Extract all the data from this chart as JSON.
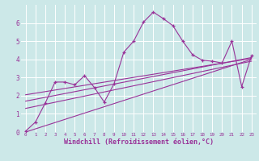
{
  "bg_color": "#cce8e8",
  "line_color": "#993399",
  "grid_color": "#ffffff",
  "xlim": [
    -0.5,
    23.5
  ],
  "ylim": [
    0,
    7
  ],
  "xticks": [
    0,
    1,
    2,
    3,
    4,
    5,
    6,
    7,
    8,
    9,
    10,
    11,
    12,
    13,
    14,
    15,
    16,
    17,
    18,
    19,
    20,
    21,
    22,
    23
  ],
  "yticks": [
    0,
    1,
    2,
    3,
    4,
    5,
    6
  ],
  "line1_x": [
    0,
    1,
    2,
    3,
    4,
    5,
    6,
    7,
    8,
    9,
    10,
    11,
    12,
    13,
    14,
    15,
    16,
    17,
    18,
    19,
    20,
    21,
    22,
    23
  ],
  "line1_y": [
    0.05,
    0.55,
    1.6,
    2.75,
    2.75,
    2.6,
    3.1,
    2.45,
    1.65,
    2.65,
    4.4,
    5.0,
    6.05,
    6.6,
    6.25,
    5.85,
    5.0,
    4.25,
    3.95,
    3.9,
    3.8,
    5.0,
    2.5,
    4.2
  ],
  "line2_x": [
    0,
    23
  ],
  "line2_y": [
    0.0,
    4.0
  ],
  "line3_x": [
    0,
    23
  ],
  "line3_y": [
    1.3,
    3.9
  ],
  "line4_x": [
    0,
    23
  ],
  "line4_y": [
    1.7,
    4.1
  ],
  "line5_x": [
    0,
    23
  ],
  "line5_y": [
    2.05,
    4.05
  ],
  "xlabel": "Windchill (Refroidissement éolien,°C)",
  "xlabel_fontsize": 6.0,
  "tick_fontsize_x": 4.2,
  "tick_fontsize_y": 5.5
}
